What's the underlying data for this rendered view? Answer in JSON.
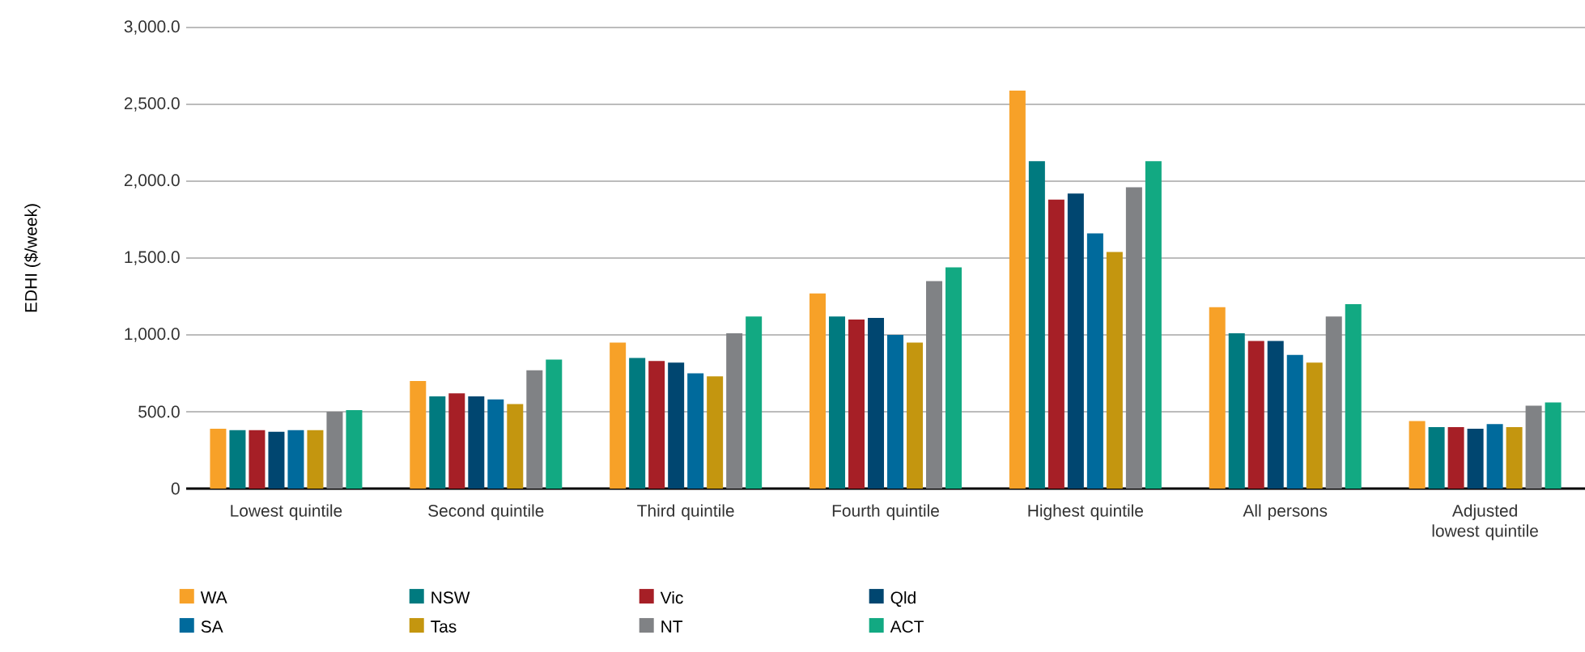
{
  "chart_data": {
    "type": "bar",
    "ylabel": "EDHI ($/week)",
    "categories": [
      "Lowest quintile",
      "Second quintile",
      "Third quintile",
      "Fourth quintile",
      "Highest quintile",
      "All persons",
      "Adjusted lowest quintile"
    ],
    "series": [
      {
        "name": "WA",
        "color": "#f7a128",
        "values": [
          390,
          700,
          950,
          1270,
          2590,
          1180,
          440
        ]
      },
      {
        "name": "NSW",
        "color": "#007a7f",
        "values": [
          380,
          600,
          850,
          1120,
          2130,
          1010,
          400
        ]
      },
      {
        "name": "Vic",
        "color": "#a61f26",
        "values": [
          380,
          620,
          830,
          1100,
          1880,
          960,
          400
        ]
      },
      {
        "name": "Qld",
        "color": "#004670",
        "values": [
          370,
          600,
          820,
          1110,
          1920,
          960,
          390
        ]
      },
      {
        "name": "SA",
        "color": "#006a9c",
        "values": [
          380,
          580,
          750,
          1000,
          1660,
          870,
          420
        ]
      },
      {
        "name": "Tas",
        "color": "#c4960f",
        "values": [
          380,
          550,
          730,
          950,
          1540,
          820,
          400
        ]
      },
      {
        "name": "NT",
        "color": "#808285",
        "values": [
          500,
          770,
          1010,
          1350,
          1960,
          1120,
          540
        ]
      },
      {
        "name": "ACT",
        "color": "#12a982",
        "values": [
          510,
          840,
          1120,
          1440,
          2130,
          1200,
          560
        ]
      }
    ],
    "ylim": [
      0,
      3000
    ],
    "yticks": [
      0,
      {
        "value": 500,
        "label": "500.0"
      },
      {
        "value": 1000,
        "label": "1,000.0"
      },
      {
        "value": 1500,
        "label": "1,500.0"
      },
      {
        "value": 2000,
        "label": "2,000.0"
      },
      {
        "value": 2500,
        "label": "2,500.0"
      },
      {
        "value": 3000,
        "label": "3,000.0"
      }
    ],
    "grid": "y",
    "legend": "bottom left"
  }
}
